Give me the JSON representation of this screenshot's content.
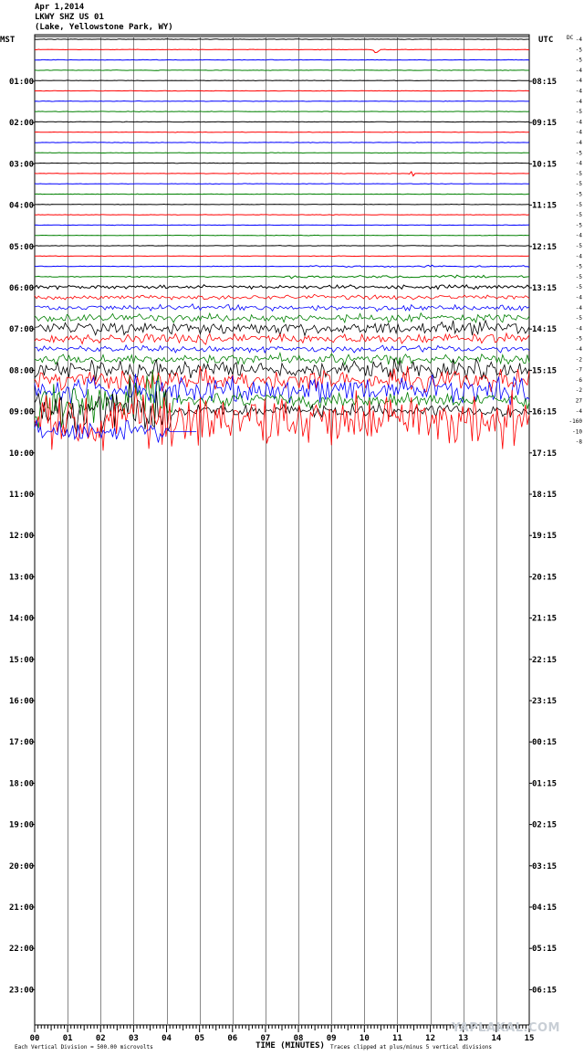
{
  "header": {
    "date": "Apr 1,2014",
    "station": "LKWY SHZ US 01",
    "location": "(Lake, Yellowstone Park, WY)"
  },
  "chart_data": {
    "type": "line",
    "title": "",
    "left_axis_label": "MST",
    "right_axis_label": "UTC",
    "dc_label": "DC",
    "xlabel": "TIME (MINUTES)",
    "x_ticks": [
      "00",
      "01",
      "02",
      "03",
      "04",
      "05",
      "06",
      "07",
      "08",
      "09",
      "10",
      "11",
      "12",
      "13",
      "14",
      "15"
    ],
    "xlim": [
      0,
      15
    ],
    "mst_hours": [
      "01:00",
      "02:00",
      "03:00",
      "04:00",
      "05:00",
      "06:00",
      "07:00",
      "08:00",
      "09:00",
      "10:00",
      "11:00",
      "12:00",
      "13:00",
      "14:00",
      "15:00",
      "16:00",
      "17:00",
      "18:00",
      "19:00",
      "20:00",
      "21:00",
      "22:00",
      "23:00"
    ],
    "utc_hours": [
      "08:15",
      "09:15",
      "10:15",
      "11:15",
      "12:15",
      "13:15",
      "14:15",
      "15:15",
      "16:15",
      "17:15",
      "18:15",
      "19:15",
      "20:15",
      "21:15",
      "22:15",
      "23:15",
      "00:15",
      "01:15",
      "02:15",
      "03:15",
      "04:15",
      "05:15",
      "06:15"
    ],
    "trace_colors": [
      "#000000",
      "#ff0000",
      "#0000ff",
      "#008000"
    ],
    "dc_offsets": [
      "-4",
      "-5",
      "-5",
      "-4",
      "-4",
      "-4",
      "-4",
      "-5",
      "-4",
      "-4",
      "-4",
      "-5",
      "-4",
      "-5",
      "-5",
      "-5",
      "-5",
      "-5",
      "-5",
      "-4",
      "-5",
      "-4",
      "-5",
      "-5",
      "-5",
      "-4",
      "-4",
      "-5",
      "-4",
      "-5",
      "-4",
      "-2",
      "-7",
      "-6",
      "-2",
      "27",
      "-4",
      "-160",
      "-10",
      "-8"
    ],
    "footer_left": "Each Vertical Division =  500.00 microvolts",
    "footer_right": "Traces clipped at plus/minus 5 vertical divisions"
  },
  "watermark": "YAPLAKAL.COM"
}
